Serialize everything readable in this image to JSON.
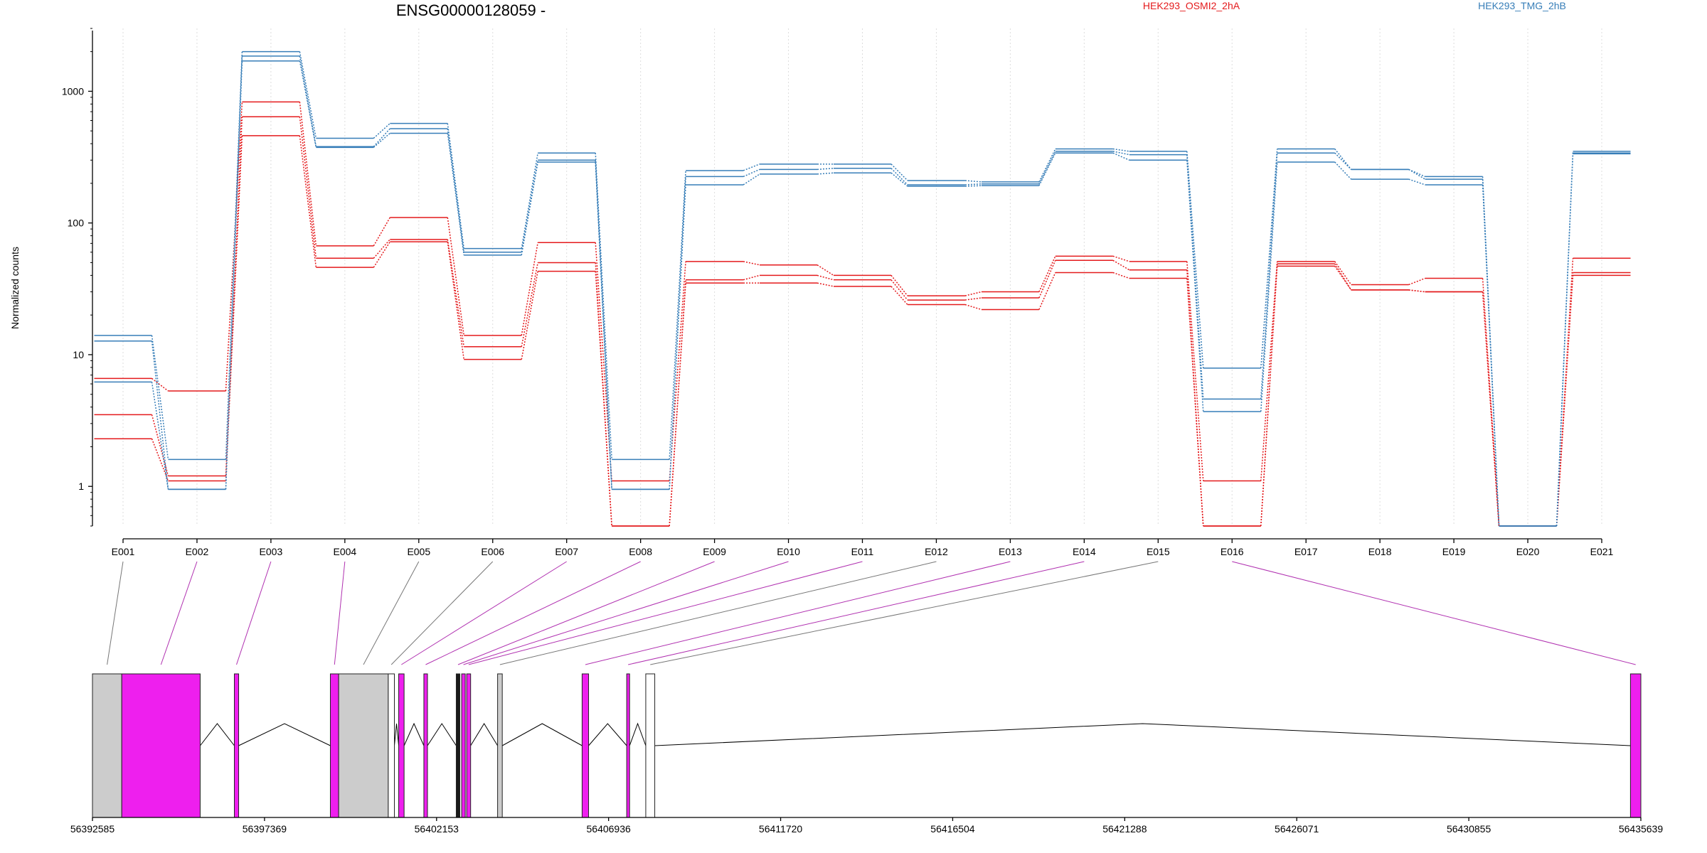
{
  "chart_data": {
    "type": "line",
    "title": "ENSG00000128059 -",
    "xlabel": "",
    "ylabel": "Normalized counts",
    "yscale": "log",
    "ylim": [
      0.5,
      3000
    ],
    "yticks": [
      1,
      10,
      100,
      1000
    ],
    "ytick_labels": [
      "1",
      "10",
      "100",
      "1000"
    ],
    "grid": "vertical dotted lines at exon positions",
    "categories": [
      "E001",
      "E002",
      "E003",
      "E004",
      "E005",
      "E006",
      "E007",
      "E008",
      "E009",
      "E010",
      "E011",
      "E012",
      "E013",
      "E014",
      "E015",
      "E016",
      "E017",
      "E018",
      "E019",
      "E020",
      "E021"
    ],
    "legend": [
      {
        "label": "HEK293_OSMI2_2hA",
        "color": "#e41a1c"
      },
      {
        "label": "HEK293_TMG_2hB",
        "color": "#377eb8"
      }
    ],
    "series": [
      {
        "condition": "HEK293_OSMI2_2hA",
        "color": "#e41a1c",
        "values": [
          6.6,
          5.3,
          830,
          67,
          110,
          14,
          71,
          1.1,
          51,
          48,
          40,
          28,
          30,
          56,
          51,
          1.1,
          51,
          34,
          38,
          0.5,
          54
        ]
      },
      {
        "condition": "HEK293_OSMI2_2hA",
        "color": "#e41a1c",
        "values": [
          3.5,
          1.2,
          640,
          54,
          75,
          11.5,
          50,
          0.5,
          37,
          40,
          37,
          26,
          27,
          52,
          44,
          0.5,
          49,
          31,
          30,
          0.5,
          42
        ]
      },
      {
        "condition": "HEK293_OSMI2_2hA",
        "color": "#e41a1c",
        "values": [
          2.3,
          1.1,
          460,
          46,
          72,
          9.2,
          43,
          0.5,
          35,
          35,
          33,
          24,
          22,
          42,
          38,
          0.5,
          47,
          31,
          30,
          0.5,
          40
        ]
      },
      {
        "condition": "HEK293_TMG_2hB",
        "color": "#377eb8",
        "values": [
          14,
          1.6,
          2000,
          440,
          570,
          64,
          340,
          1.6,
          250,
          280,
          280,
          210,
          205,
          365,
          350,
          7.9,
          365,
          255,
          225,
          0.5,
          350
        ]
      },
      {
        "condition": "HEK293_TMG_2hB",
        "color": "#377eb8",
        "values": [
          12.7,
          0.95,
          1850,
          380,
          520,
          60,
          300,
          0.95,
          225,
          255,
          260,
          195,
          198,
          350,
          330,
          4.6,
          340,
          255,
          215,
          0.5,
          340
        ]
      },
      {
        "condition": "HEK293_TMG_2hB",
        "color": "#377eb8",
        "values": [
          6.2,
          0.95,
          1700,
          375,
          480,
          57,
          290,
          0.95,
          195,
          235,
          240,
          190,
          192,
          340,
          300,
          3.7,
          290,
          215,
          195,
          0.5,
          335
        ]
      }
    ],
    "genomic_axis": {
      "tick_labels": [
        "56392585",
        "56397369",
        "56402153",
        "56406936",
        "56411720",
        "56416504",
        "56421288",
        "56426071",
        "56430855",
        "56435639"
      ],
      "tick_values": [
        56392585,
        56397369,
        56402153,
        56406936,
        56411720,
        56416504,
        56421288,
        56426071,
        56430855,
        56435639
      ],
      "range": [
        56392585,
        56435639
      ]
    },
    "exon_blocks": [
      {
        "start": 56392585,
        "end": 56393400,
        "fill": "#cccccc",
        "link_color": "#777777"
      },
      {
        "start": 56393400,
        "end": 56395580,
        "fill": "#ee1fee",
        "link_color": "#b030b0"
      },
      {
        "start": 56396530,
        "end": 56396650,
        "fill": "#ee1fee",
        "link_color": "#b030b0"
      },
      {
        "start": 56399200,
        "end": 56399430,
        "fill": "#ee1fee",
        "link_color": "#b030b0"
      },
      {
        "start": 56399430,
        "end": 56400810,
        "fill": "#cccccc",
        "link_color": "#777777"
      },
      {
        "start": 56400810,
        "end": 56400980,
        "fill": "#ffffff",
        "link_color": "#777777"
      },
      {
        "start": 56401100,
        "end": 56401250,
        "fill": "#ee1fee",
        "link_color": "#b030b0"
      },
      {
        "start": 56401800,
        "end": 56401900,
        "fill": "#ee1fee",
        "link_color": "#b030b0"
      },
      {
        "start": 56402700,
        "end": 56402800,
        "fill": "#1a1a1a",
        "link_color": "#b030b0"
      },
      {
        "start": 56402850,
        "end": 56402950,
        "fill": "#ee1fee",
        "link_color": "#b030b0"
      },
      {
        "start": 56402990,
        "end": 56403100,
        "fill": "#ee1fee",
        "link_color": "#b030b0"
      },
      {
        "start": 56403850,
        "end": 56403980,
        "fill": "#cccccc",
        "link_color": "#777777"
      },
      {
        "start": 56406200,
        "end": 56406380,
        "fill": "#ee1fee",
        "link_color": "#b030b0"
      },
      {
        "start": 56407440,
        "end": 56407520,
        "fill": "#ee1fee",
        "link_color": "#b030b0"
      },
      {
        "start": 56407970,
        "end": 56408220,
        "fill": "#ffffff",
        "link_color": "#777777"
      },
      {
        "start": 56435350,
        "end": 56435639,
        "fill": "#ee1fee",
        "link_color": "#b030b0"
      }
    ]
  }
}
